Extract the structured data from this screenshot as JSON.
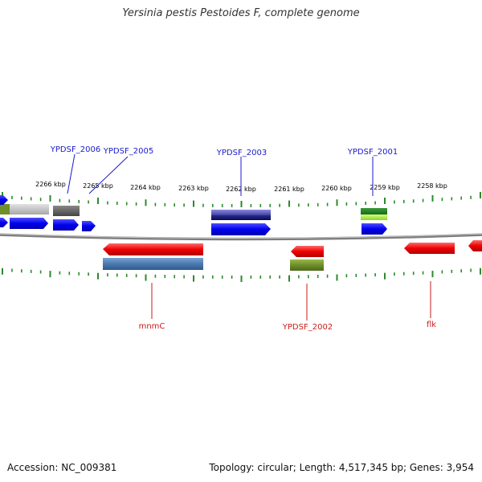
{
  "title": "Yersinia pestis Pestoides F, complete genome",
  "footer": {
    "accession": "Accession: NC_009381",
    "summary": "Topology: circular; Length: 4,517,345 bp; Genes: 3,954"
  },
  "ticks": [
    {
      "kbp": 2266,
      "label": "2266 kbp"
    },
    {
      "kbp": 2265,
      "label": "2265 kbp"
    },
    {
      "kbp": 2264,
      "label": "2264 kbp"
    },
    {
      "kbp": 2263,
      "label": "2263 kbp"
    },
    {
      "kbp": 2262,
      "label": "2262 kbp"
    },
    {
      "kbp": 2261,
      "label": "2261 kbp"
    },
    {
      "kbp": 2260,
      "label": "2260 kbp"
    },
    {
      "kbp": 2259,
      "label": "2259 kbp"
    },
    {
      "kbp": 2258,
      "label": "2258 kbp"
    }
  ],
  "gene_labels_top": [
    "YPDSF_2006",
    "YPDSF_2005",
    "YPDSF_2003",
    "YPDSF_2001"
  ],
  "gene_labels_bottom": [
    "mnmC",
    "YPDSF_2002",
    "flk"
  ],
  "colors": {
    "forward_cds": "#1a1aff",
    "reverse_cds": "#ff1a1a",
    "forward_label": "#1a1acc",
    "reverse_label": "#cc1a1a",
    "tick": "#2a8a2a",
    "backbone": "#8a8a8a"
  }
}
